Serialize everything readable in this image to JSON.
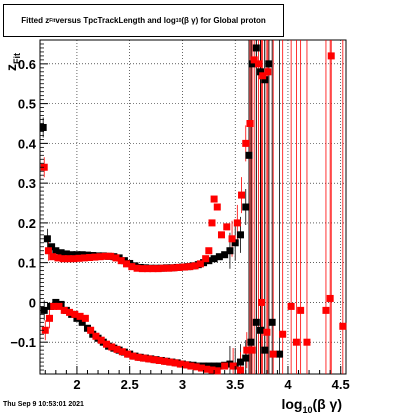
{
  "title": {
    "prefix": "Fitted  z",
    "sub1": "Fit",
    "middle": "  versus TpcTrackLength and log",
    "sub2": "10",
    "suffix": "(β  γ) for Global proton"
  },
  "footer": "Thu Sep  9 10:53:01 2021",
  "chart_data": {
    "type": "scatter",
    "title": "Fitted  zFit  versus TpcTrackLength and log10(β  γ) for Global proton",
    "xlabel": "log10(β γ)",
    "ylabel": "zFit",
    "xlim": [
      1.65,
      4.55
    ],
    "ylim": [
      -0.18,
      0.66
    ],
    "grid": true,
    "x_ticks": [
      2,
      2.5,
      3,
      3.5,
      4,
      4.5
    ],
    "x_tick_labels": [
      "2",
      "2.5",
      "3",
      "3.5",
      "4",
      "4.5"
    ],
    "y_ticks": [
      -0.1,
      0,
      0.1,
      0.2,
      0.3,
      0.4,
      0.5,
      0.6
    ],
    "y_tick_labels": [
      "−0.1",
      "0",
      "0.1",
      "0.2",
      "0.3",
      "0.4",
      "0.5",
      "0.6"
    ],
    "series": [
      {
        "color": "#000000",
        "marker": "square",
        "points": [
          [
            1.68,
            0.44
          ],
          [
            1.72,
            0.16
          ],
          [
            1.76,
            0.14
          ],
          [
            1.8,
            0.13
          ],
          [
            1.85,
            0.125
          ],
          [
            1.9,
            0.122
          ],
          [
            1.95,
            0.12
          ],
          [
            2.0,
            0.12
          ],
          [
            2.05,
            0.12
          ],
          [
            2.1,
            0.119
          ],
          [
            2.15,
            0.118
          ],
          [
            2.2,
            0.117
          ],
          [
            2.25,
            0.117
          ],
          [
            2.3,
            0.116
          ],
          [
            2.35,
            0.115
          ],
          [
            2.4,
            0.112
          ],
          [
            2.45,
            0.105
          ],
          [
            2.5,
            0.098
          ],
          [
            2.55,
            0.092
          ],
          [
            2.6,
            0.088
          ],
          [
            2.65,
            0.087
          ],
          [
            2.7,
            0.086
          ],
          [
            2.75,
            0.086
          ],
          [
            2.8,
            0.086
          ],
          [
            2.85,
            0.087
          ],
          [
            2.9,
            0.087
          ],
          [
            2.95,
            0.088
          ],
          [
            3.0,
            0.089
          ],
          [
            3.05,
            0.09
          ],
          [
            3.1,
            0.092
          ],
          [
            3.15,
            0.095
          ],
          [
            3.2,
            0.1
          ],
          [
            3.25,
            0.105
          ],
          [
            3.3,
            0.11
          ],
          [
            3.35,
            0.115
          ],
          [
            3.4,
            0.12
          ],
          [
            3.45,
            0.13
          ],
          [
            3.5,
            0.15
          ],
          [
            3.55,
            0.17
          ],
          [
            3.6,
            0.24
          ],
          [
            3.63,
            0.37
          ],
          [
            3.66,
            0.6
          ],
          [
            3.7,
            0.64
          ],
          [
            3.74,
            0.58
          ],
          [
            3.78,
            0.56
          ],
          [
            3.82,
            0.6
          ],
          [
            1.69,
            -0.02
          ],
          [
            1.75,
            -0.01
          ],
          [
            1.8,
            0.0
          ],
          [
            1.85,
            -0.005
          ],
          [
            1.9,
            -0.02
          ],
          [
            1.95,
            -0.03
          ],
          [
            2.0,
            -0.04
          ],
          [
            2.05,
            -0.05
          ],
          [
            2.1,
            -0.065
          ],
          [
            2.15,
            -0.08
          ],
          [
            2.2,
            -0.09
          ],
          [
            2.25,
            -0.1
          ],
          [
            2.3,
            -0.11
          ],
          [
            2.35,
            -0.115
          ],
          [
            2.4,
            -0.12
          ],
          [
            2.45,
            -0.125
          ],
          [
            2.5,
            -0.13
          ],
          [
            2.55,
            -0.135
          ],
          [
            2.6,
            -0.138
          ],
          [
            2.65,
            -0.14
          ],
          [
            2.7,
            -0.142
          ],
          [
            2.75,
            -0.144
          ],
          [
            2.8,
            -0.146
          ],
          [
            2.85,
            -0.148
          ],
          [
            2.9,
            -0.15
          ],
          [
            2.95,
            -0.152
          ],
          [
            3.0,
            -0.155
          ],
          [
            3.05,
            -0.157
          ],
          [
            3.1,
            -0.158
          ],
          [
            3.15,
            -0.16
          ],
          [
            3.2,
            -0.16
          ],
          [
            3.25,
            -0.16
          ],
          [
            3.3,
            -0.16
          ],
          [
            3.35,
            -0.16
          ],
          [
            3.4,
            -0.158
          ],
          [
            3.45,
            -0.155
          ],
          [
            3.5,
            -0.16
          ],
          [
            3.55,
            -0.15
          ],
          [
            3.6,
            -0.14
          ],
          [
            3.65,
            -0.1
          ],
          [
            3.7,
            -0.05
          ],
          [
            3.74,
            -0.07
          ],
          [
            3.78,
            -0.12
          ],
          [
            3.85,
            -0.05
          ],
          [
            3.92,
            -0.13
          ]
        ]
      },
      {
        "color": "#ff0000",
        "marker": "square",
        "points": [
          [
            1.69,
            0.34
          ],
          [
            1.73,
            0.13
          ],
          [
            1.77,
            0.115
          ],
          [
            1.82,
            0.112
          ],
          [
            1.87,
            0.11
          ],
          [
            1.92,
            0.11
          ],
          [
            1.97,
            0.11
          ],
          [
            2.02,
            0.111
          ],
          [
            2.07,
            0.112
          ],
          [
            2.12,
            0.113
          ],
          [
            2.17,
            0.114
          ],
          [
            2.22,
            0.115
          ],
          [
            2.27,
            0.116
          ],
          [
            2.32,
            0.116
          ],
          [
            2.37,
            0.112
          ],
          [
            2.42,
            0.105
          ],
          [
            2.47,
            0.097
          ],
          [
            2.52,
            0.09
          ],
          [
            2.57,
            0.086
          ],
          [
            2.62,
            0.085
          ],
          [
            2.67,
            0.085
          ],
          [
            2.72,
            0.085
          ],
          [
            2.77,
            0.085
          ],
          [
            2.82,
            0.086
          ],
          [
            2.87,
            0.086
          ],
          [
            2.92,
            0.087
          ],
          [
            2.97,
            0.088
          ],
          [
            3.02,
            0.089
          ],
          [
            3.07,
            0.09
          ],
          [
            3.12,
            0.092
          ],
          [
            3.17,
            0.097
          ],
          [
            3.22,
            0.11
          ],
          [
            3.25,
            0.13
          ],
          [
            3.28,
            0.2
          ],
          [
            3.3,
            0.26
          ],
          [
            3.33,
            0.24
          ],
          [
            3.37,
            0.17
          ],
          [
            3.42,
            0.19
          ],
          [
            3.47,
            0.16
          ],
          [
            3.52,
            0.2
          ],
          [
            3.56,
            0.27
          ],
          [
            3.6,
            0.4
          ],
          [
            3.64,
            0.45
          ],
          [
            3.68,
            0.61
          ],
          [
            3.72,
            0.6
          ],
          [
            3.76,
            0.57
          ],
          [
            3.81,
            0.58
          ],
          [
            4.41,
            0.62
          ],
          [
            1.7,
            -0.07
          ],
          [
            1.74,
            -0.04
          ],
          [
            1.78,
            -0.01
          ],
          [
            1.83,
            -0.01
          ],
          [
            1.88,
            -0.02
          ],
          [
            1.93,
            -0.025
          ],
          [
            1.98,
            -0.03
          ],
          [
            2.03,
            -0.035
          ],
          [
            2.08,
            -0.04
          ],
          [
            2.13,
            -0.07
          ],
          [
            2.18,
            -0.085
          ],
          [
            2.23,
            -0.095
          ],
          [
            2.28,
            -0.105
          ],
          [
            2.33,
            -0.112
          ],
          [
            2.38,
            -0.118
          ],
          [
            2.43,
            -0.124
          ],
          [
            2.48,
            -0.13
          ],
          [
            2.53,
            -0.135
          ],
          [
            2.58,
            -0.138
          ],
          [
            2.63,
            -0.14
          ],
          [
            2.68,
            -0.142
          ],
          [
            2.73,
            -0.144
          ],
          [
            2.78,
            -0.146
          ],
          [
            2.83,
            -0.148
          ],
          [
            2.88,
            -0.15
          ],
          [
            2.93,
            -0.152
          ],
          [
            2.98,
            -0.155
          ],
          [
            3.03,
            -0.157
          ],
          [
            3.08,
            -0.16
          ],
          [
            3.13,
            -0.162
          ],
          [
            3.18,
            -0.165
          ],
          [
            3.23,
            -0.168
          ],
          [
            3.28,
            -0.17
          ],
          [
            3.33,
            -0.172
          ],
          [
            3.4,
            -0.16
          ],
          [
            3.48,
            -0.16
          ],
          [
            3.55,
            -0.17
          ],
          [
            3.61,
            -0.12
          ],
          [
            3.66,
            -0.12
          ],
          [
            3.75,
            0.0
          ],
          [
            3.8,
            -0.075
          ],
          [
            3.86,
            -0.13
          ],
          [
            3.95,
            -0.08
          ],
          [
            4.03,
            -0.01
          ],
          [
            4.08,
            -0.1
          ],
          [
            4.12,
            -0.02
          ],
          [
            4.18,
            -0.1
          ],
          [
            4.36,
            -0.02
          ],
          [
            4.4,
            0.01
          ],
          [
            4.52,
            -0.06
          ]
        ]
      }
    ]
  }
}
